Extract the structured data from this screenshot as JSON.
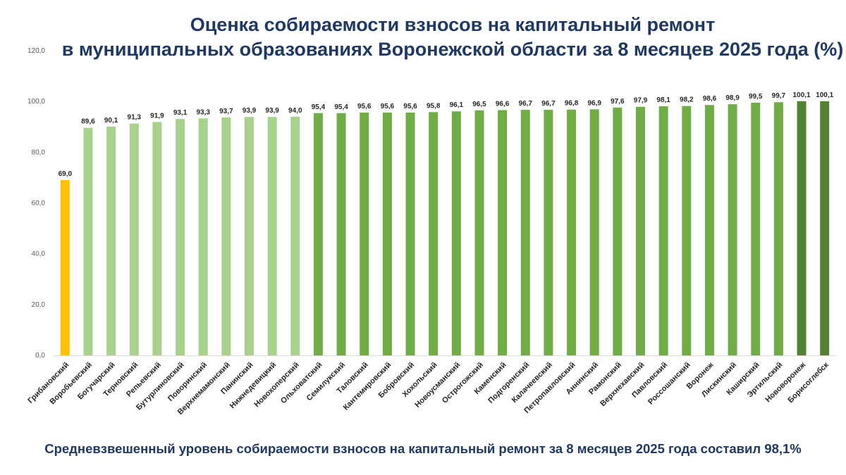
{
  "header": {
    "title_line1": "Оценка собираемости взносов на капитальный ремонт",
    "title_line2": "в муниципальных образованиях Воронежской области за 8 месяцев 2025 года (%)"
  },
  "footer": {
    "text": "Средневзвешенный уровень собираемости взносов на капитальный ремонт за 8 месяцев 2025 года составил 98,1%"
  },
  "colors": {
    "low": "#ffc000",
    "light": "#a9d18e",
    "mid": "#70ad47",
    "dark": "#548235"
  },
  "chart_data": {
    "type": "bar",
    "title": "Оценка собираемости взносов на капитальный ремонт в муниципальных образованиях Воронежской области за 8 месяцев 2025 года (%)",
    "xlabel": "",
    "ylabel": "",
    "ylim": [
      0,
      120
    ],
    "yticks": [
      "0,0",
      "20,0",
      "40,0",
      "60,0",
      "80,0",
      "100,0",
      "120,0"
    ],
    "grid": false,
    "categories": [
      "Грибановский",
      "Воробьевский",
      "Богучарский",
      "Терновский",
      "Репьевский",
      "Бутурлиновский",
      "Поворинский",
      "Верхнемамонский",
      "Панинский",
      "Нижнедевицкий",
      "Новохоперский",
      "Ольховатский",
      "Семилукский",
      "Таловский",
      "Кантемировский",
      "Бобровский",
      "Хохольский",
      "Новоусманский",
      "Острогожский",
      "Каменский",
      "Подгоренский",
      "Калачеевский",
      "Петропавловский",
      "Аннинский",
      "Рамонский",
      "Верхнехавский",
      "Павловский",
      "Россошанский",
      "Воронеж",
      "Лискинский",
      "Каширский",
      "Эртильский",
      "Нововоронеж",
      "Борисоглебск"
    ],
    "values": [
      69.0,
      89.6,
      90.1,
      91.3,
      91.9,
      93.1,
      93.3,
      93.7,
      93.9,
      93.9,
      94.0,
      95.4,
      95.4,
      95.6,
      95.6,
      95.6,
      95.8,
      96.1,
      96.5,
      96.6,
      96.7,
      96.7,
      96.8,
      96.9,
      97.6,
      97.9,
      98.1,
      98.2,
      98.6,
      98.9,
      99.5,
      99.7,
      100.1,
      100.1
    ],
    "value_labels": [
      "69,0",
      "89,6",
      "90,1",
      "91,3",
      "91,9",
      "93,1",
      "93,3",
      "93,7",
      "93,9",
      "93,9",
      "94,0",
      "95,4",
      "95,4",
      "95,6",
      "95,6",
      "95,6",
      "95,8",
      "96,1",
      "96,5",
      "96,6",
      "96,7",
      "96,7",
      "96,8",
      "96,9",
      "97,6",
      "97,9",
      "98,1",
      "98,2",
      "98,6",
      "98,9",
      "99,5",
      "99,7",
      "100,1",
      "100,1"
    ],
    "bar_colors": [
      "low",
      "light",
      "light",
      "light",
      "light",
      "light",
      "light",
      "light",
      "light",
      "light",
      "light",
      "mid",
      "mid",
      "mid",
      "mid",
      "mid",
      "mid",
      "mid",
      "mid",
      "mid",
      "mid",
      "mid",
      "mid",
      "mid",
      "mid",
      "mid",
      "mid",
      "mid",
      "mid",
      "mid",
      "mid",
      "mid",
      "dark",
      "dark"
    ]
  }
}
